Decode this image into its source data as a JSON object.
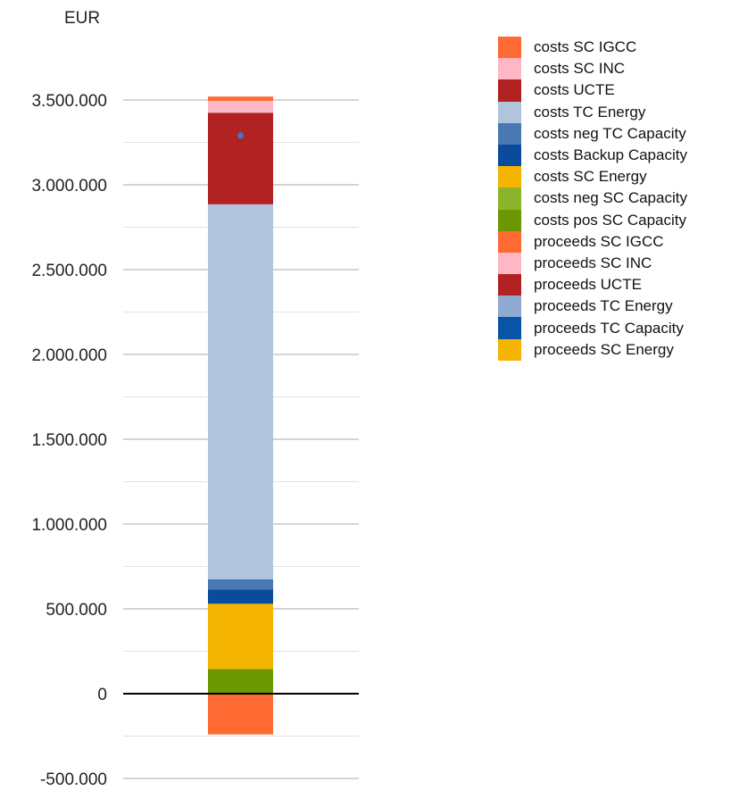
{
  "chart_data": {
    "type": "bar",
    "stacked": true,
    "ylabel": "EUR",
    "ylim": [
      -500000,
      3500000
    ],
    "y_ticks": [
      {
        "value": 3500000,
        "label": "3.500.000"
      },
      {
        "value": 3000000,
        "label": "3.000.000"
      },
      {
        "value": 2500000,
        "label": "2.500.000"
      },
      {
        "value": 2000000,
        "label": "2.000.000"
      },
      {
        "value": 1500000,
        "label": "1.500.000"
      },
      {
        "value": 1000000,
        "label": "1.000.000"
      },
      {
        "value": 500000,
        "label": "500.000"
      },
      {
        "value": 0,
        "label": "0"
      },
      {
        "value": -500000,
        "label": "-500.000"
      }
    ],
    "minor_gridlines": true,
    "legend_position": "right",
    "series": [
      {
        "name": "costs SC IGCC",
        "color": "#ff6a33",
        "value": 25000
      },
      {
        "name": "costs SC INC",
        "color": "#ffb6c5",
        "value": 70000
      },
      {
        "name": "costs UCTE",
        "color": "#b22222",
        "value": 540000
      },
      {
        "name": "costs TC Energy",
        "color": "#b0c4de",
        "value": 2210000
      },
      {
        "name": "costs neg TC Capacity",
        "color": "#4a78b5",
        "value": 60000
      },
      {
        "name": "costs Backup Capacity",
        "color": "#0a4b9e",
        "value": 85000
      },
      {
        "name": "costs SC Energy",
        "color": "#f5b400",
        "value": 385000
      },
      {
        "name": "costs neg SC Capacity",
        "color": "#8db52c",
        "value": 0
      },
      {
        "name": "costs pos SC Capacity",
        "color": "#6b9800",
        "value": 145000
      },
      {
        "name": "proceeds SC IGCC",
        "color": "#ff6a33",
        "value": -240000
      },
      {
        "name": "proceeds SC INC",
        "color": "#ffb6c5",
        "value": 0
      },
      {
        "name": "proceeds UCTE",
        "color": "#b22222",
        "value": 0
      },
      {
        "name": "proceeds TC Energy",
        "color": "#8eaad0",
        "value": 0
      },
      {
        "name": "proceeds TC Capacity",
        "color": "#0a54a8",
        "value": 0
      },
      {
        "name": "proceeds SC Energy",
        "color": "#f5b400",
        "value": 0
      }
    ],
    "marker": {
      "value": 3290000,
      "color": "#3a7bd5"
    }
  }
}
